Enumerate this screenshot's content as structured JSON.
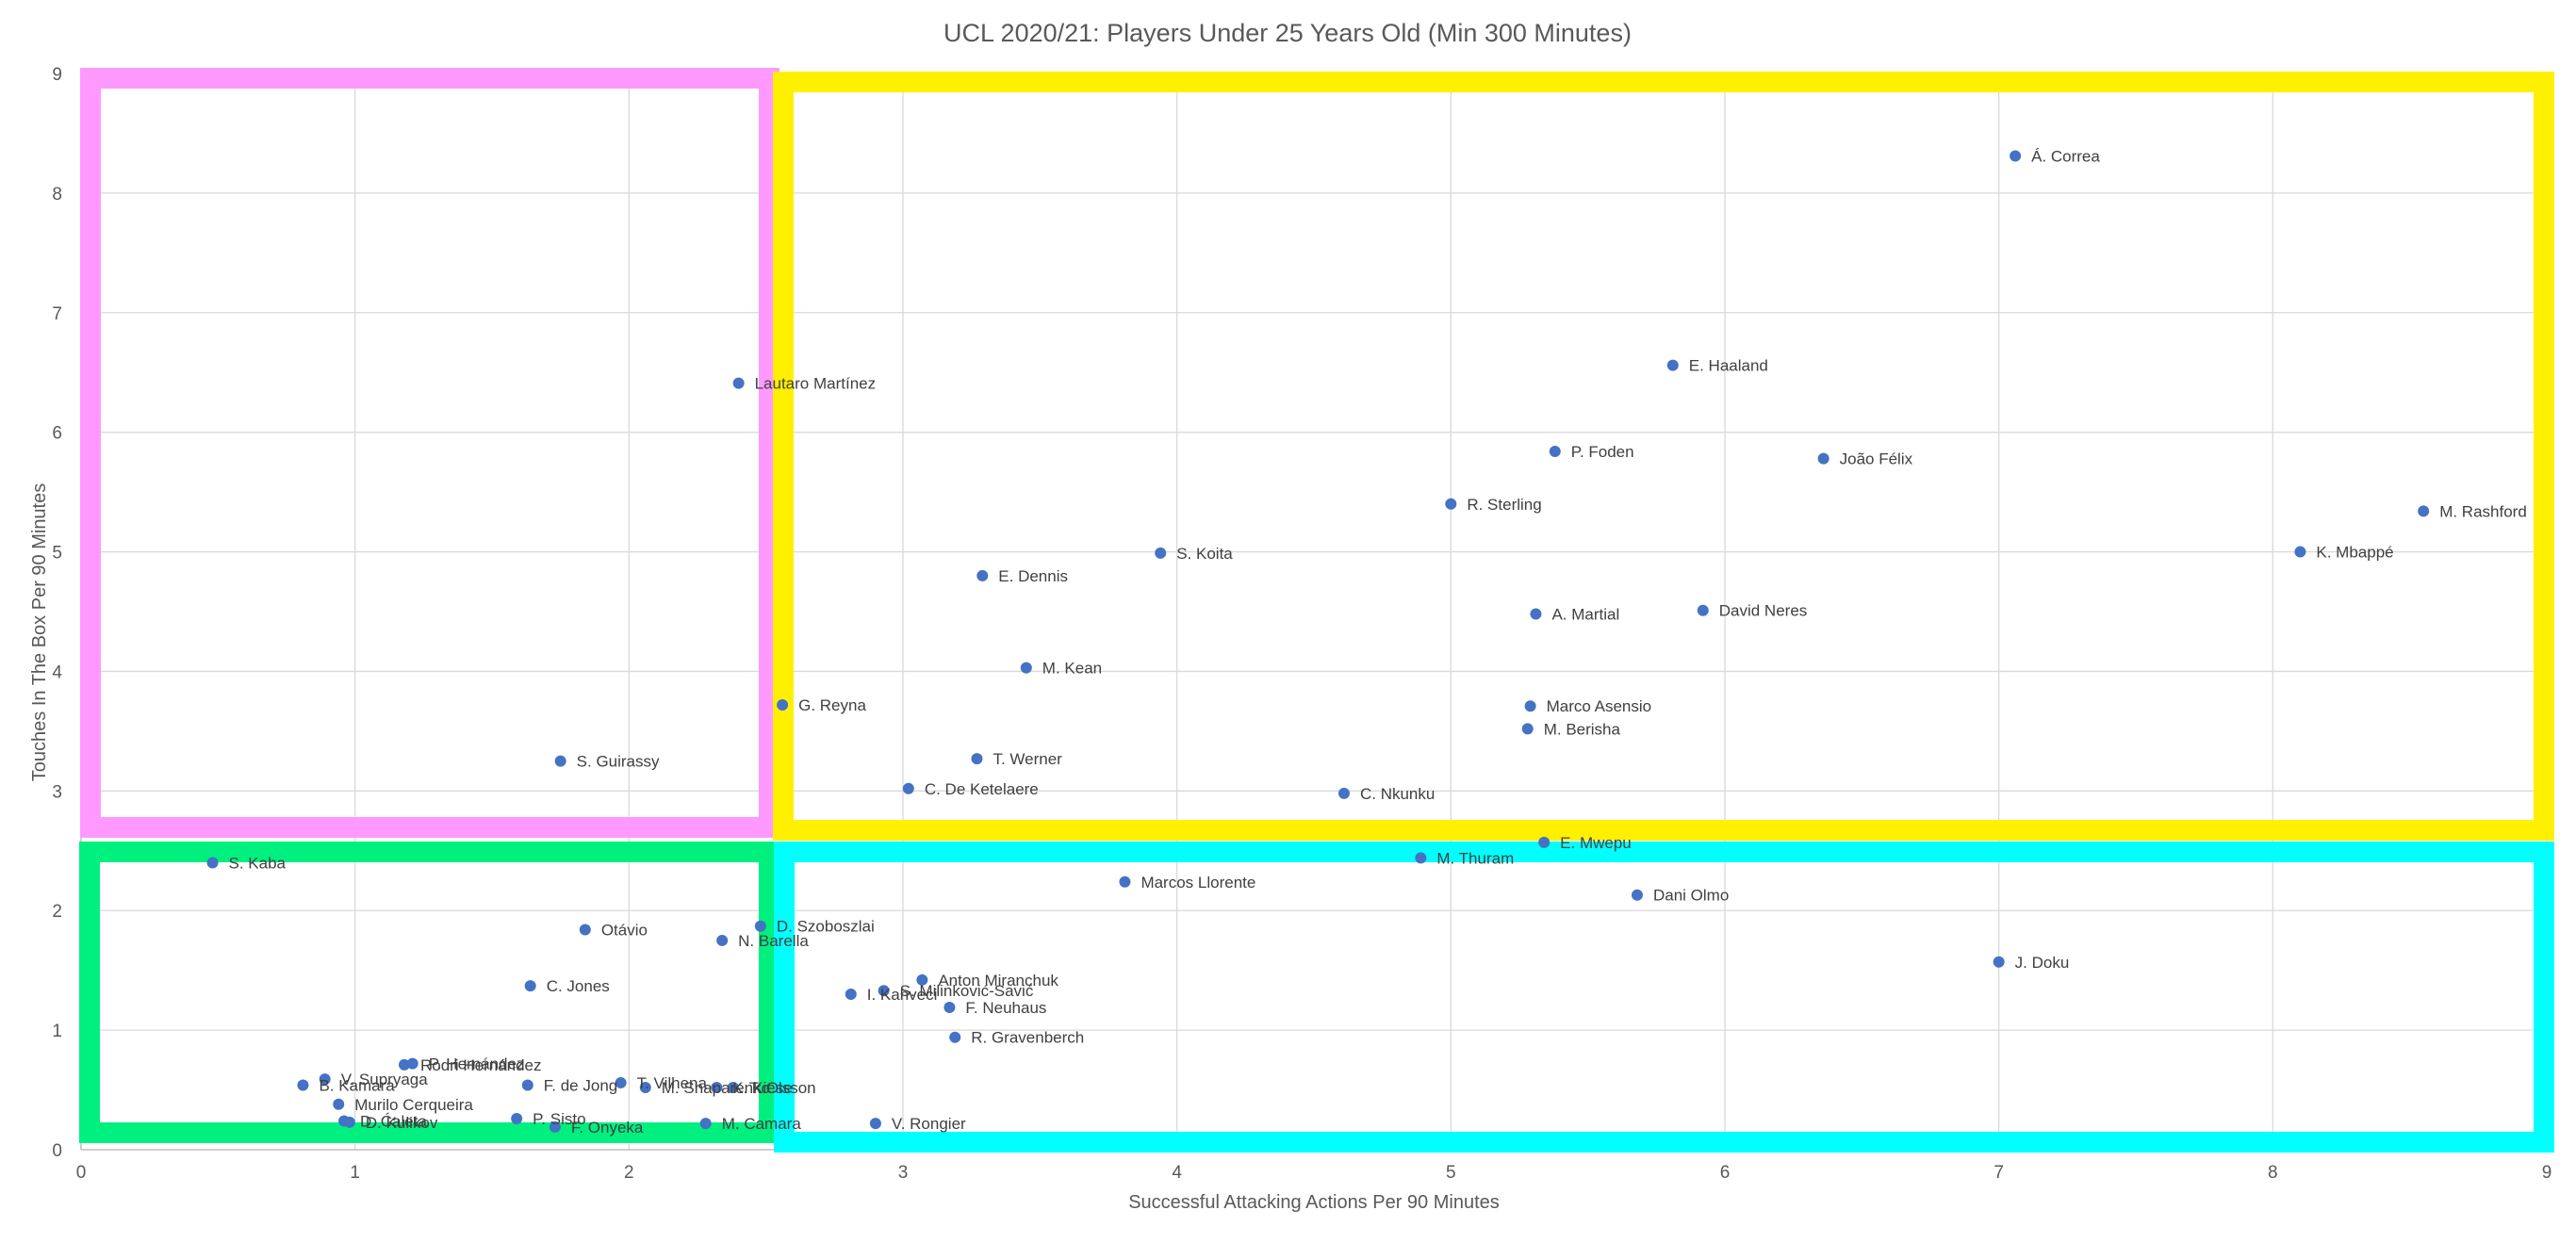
{
  "chart_data": {
    "type": "scatter",
    "title": "UCL 2020/21: Players Under 25 Years Old (Min 300 Minutes)",
    "xlabel": "Successful Attacking Actions Per 90 Minutes",
    "ylabel": "Touches In The Box Per 90 Minutes",
    "xlim": [
      0,
      9
    ],
    "ylim": [
      0,
      9
    ],
    "x_ticks": [
      "0",
      "1",
      "2",
      "3",
      "4",
      "5",
      "6",
      "7",
      "8",
      "9"
    ],
    "y_ticks": [
      "0",
      "1",
      "2",
      "3",
      "4",
      "5",
      "6",
      "7",
      "8",
      "9"
    ],
    "grid": true,
    "legend": "none",
    "point_color": "#4472C4",
    "quadrant_colors": {
      "top_left": "#FF99FF",
      "top_right": "#FFF000",
      "bottom_left": "#00F080",
      "bottom_right": "#00FFFF"
    },
    "points": [
      {
        "label": "Á. Correa",
        "x": 7.06,
        "y": 8.31
      },
      {
        "label": "E. Haaland",
        "x": 5.81,
        "y": 6.56
      },
      {
        "label": "Lautaro Martínez",
        "x": 2.4,
        "y": 6.41
      },
      {
        "label": "P. Foden",
        "x": 5.38,
        "y": 5.84
      },
      {
        "label": "João Félix",
        "x": 6.36,
        "y": 5.78
      },
      {
        "label": "R. Sterling",
        "x": 5.0,
        "y": 5.4
      },
      {
        "label": "M. Rashford",
        "x": 8.55,
        "y": 5.34
      },
      {
        "label": "K. Mbappé",
        "x": 8.1,
        "y": 5.0
      },
      {
        "label": "S. Koita",
        "x": 3.94,
        "y": 4.99
      },
      {
        "label": "E. Dennis",
        "x": 3.29,
        "y": 4.8
      },
      {
        "label": "A. Martial",
        "x": 5.31,
        "y": 4.48
      },
      {
        "label": "David Neres",
        "x": 5.92,
        "y": 4.51
      },
      {
        "label": "M. Kean",
        "x": 3.45,
        "y": 4.03
      },
      {
        "label": "G. Reyna",
        "x": 2.56,
        "y": 3.72
      },
      {
        "label": "Marco Asensio",
        "x": 5.29,
        "y": 3.71
      },
      {
        "label": "M. Berisha",
        "x": 5.28,
        "y": 3.52
      },
      {
        "label": "S. Guirassy",
        "x": 1.75,
        "y": 3.25
      },
      {
        "label": "T. Werner",
        "x": 3.27,
        "y": 3.27
      },
      {
        "label": "C. De Ketelaere",
        "x": 3.02,
        "y": 3.02
      },
      {
        "label": "C. Nkunku",
        "x": 4.61,
        "y": 2.98
      },
      {
        "label": "E. Mwepu",
        "x": 5.34,
        "y": 2.57
      },
      {
        "label": "M. Thuram",
        "x": 4.89,
        "y": 2.44
      },
      {
        "label": "S. Kaba",
        "x": 0.48,
        "y": 2.4
      },
      {
        "label": "Marcos Llorente",
        "x": 3.81,
        "y": 2.24
      },
      {
        "label": "Dani Olmo",
        "x": 5.68,
        "y": 2.13
      },
      {
        "label": "D. Szoboszlai",
        "x": 2.48,
        "y": 1.87
      },
      {
        "label": "Otávio",
        "x": 1.84,
        "y": 1.84
      },
      {
        "label": "N. Barella",
        "x": 2.34,
        "y": 1.75
      },
      {
        "label": "J. Doku",
        "x": 7.0,
        "y": 1.57
      },
      {
        "label": "Anton Miranchuk",
        "x": 3.07,
        "y": 1.42
      },
      {
        "label": "C. Jones",
        "x": 1.64,
        "y": 1.37
      },
      {
        "label": "S. Milinković-Savić",
        "x": 2.93,
        "y": 1.33
      },
      {
        "label": "I. Kahveci",
        "x": 2.81,
        "y": 1.3
      },
      {
        "label": "F. Neuhaus",
        "x": 3.17,
        "y": 1.19
      },
      {
        "label": "R. Gravenberch",
        "x": 3.19,
        "y": 0.94
      },
      {
        "label": "P. Hernández",
        "x": 1.21,
        "y": 0.72
      },
      {
        "label": "Rodri Hernández",
        "x": 1.18,
        "y": 0.71
      },
      {
        "label": "V. Supryaga",
        "x": 0.89,
        "y": 0.59
      },
      {
        "label": "T. Vilhena",
        "x": 1.97,
        "y": 0.56
      },
      {
        "label": "B. Kamara",
        "x": 0.81,
        "y": 0.54
      },
      {
        "label": "F. de Jong",
        "x": 1.63,
        "y": 0.54
      },
      {
        "label": "M. Shaparenko",
        "x": 2.06,
        "y": 0.52
      },
      {
        "label": "K. Kiese",
        "x": 2.32,
        "y": 0.52
      },
      {
        "label": "T. Olsson",
        "x": 2.38,
        "y": 0.52
      },
      {
        "label": "Murilo Cerqueira",
        "x": 0.94,
        "y": 0.38
      },
      {
        "label": "P. Sisto",
        "x": 1.59,
        "y": 0.26
      },
      {
        "label": "D. Ćaleta",
        "x": 0.96,
        "y": 0.24
      },
      {
        "label": "D. Kulikov",
        "x": 0.98,
        "y": 0.23
      },
      {
        "label": "M. Camara",
        "x": 2.28,
        "y": 0.22
      },
      {
        "label": "V. Rongier",
        "x": 2.9,
        "y": 0.22
      },
      {
        "label": "F. Onyeka",
        "x": 1.73,
        "y": 0.19
      }
    ]
  }
}
